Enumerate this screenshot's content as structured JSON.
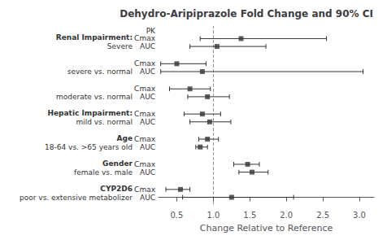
{
  "chart_data": {
    "type": "forest",
    "title": "Dehydro-Aripiprazole Fold Change and 90% CI",
    "xlabel": "Change Relative to Reference",
    "xlim": [
      0.25,
      3.2
    ],
    "xticks": [
      0.5,
      {
        "value": 1.0,
        "label": "1.0"
      },
      1.5,
      {
        "value": 2.0,
        "label": "2.0"
      },
      2.5,
      {
        "value": 3.0,
        "label": "3.0"
      }
    ],
    "reference_line": 1.0,
    "pk_header": "PK",
    "grid": false,
    "color": "#333333",
    "groups": [
      {
        "label": "CYP2D6",
        "sublabel": "poor vs. extensive metabolizer",
        "rows": [
          {
            "pk": "AUC",
            "est": 1.25,
            "lo": 0.58,
            "hi": 2.1
          },
          {
            "pk": "Cmax",
            "est": 0.55,
            "lo": 0.35,
            "hi": 0.68
          }
        ]
      },
      {
        "label": "Gender",
        "sublabel": "female vs. male",
        "rows": [
          {
            "pk": "AUC",
            "est": 1.53,
            "lo": 1.35,
            "hi": 1.75
          },
          {
            "pk": "Cmax",
            "est": 1.47,
            "lo": 1.28,
            "hi": 1.63
          }
        ]
      },
      {
        "label": "Age",
        "sublabel": "18-64 vs. >65 years old",
        "rows": [
          {
            "pk": "AUC",
            "est": 0.82,
            "lo": 0.76,
            "hi": 0.92
          },
          {
            "pk": "Cmax",
            "est": 0.92,
            "lo": 0.8,
            "hi": 1.07
          }
        ]
      },
      {
        "label": "Hepatic Impairment:",
        "sublabel": "mild vs. normal",
        "rows": [
          {
            "pk": "AUC",
            "est": 0.95,
            "lo": 0.68,
            "hi": 1.24
          },
          {
            "pk": "Cmax",
            "est": 0.85,
            "lo": 0.6,
            "hi": 1.1
          }
        ]
      },
      {
        "sublabel": "moderate vs. normal",
        "rows": [
          {
            "pk": "AUC",
            "est": 0.92,
            "lo": 0.65,
            "hi": 1.22
          },
          {
            "pk": "Cmax",
            "est": 0.68,
            "lo": 0.4,
            "hi": 0.96
          }
        ]
      },
      {
        "sublabel": "severe vs. normal",
        "rows": [
          {
            "pk": "AUC",
            "est": 0.85,
            "lo": 0.28,
            "hi": 3.05
          },
          {
            "pk": "Cmax",
            "est": 0.5,
            "lo": 0.28,
            "hi": 0.9
          }
        ]
      },
      {
        "label": "Renal Impairment:",
        "sublabel": "Severe",
        "rows": [
          {
            "pk": "AUC",
            "est": 1.05,
            "lo": 0.68,
            "hi": 1.72
          },
          {
            "pk": "Cmax",
            "est": 1.38,
            "lo": 0.82,
            "hi": 2.55
          }
        ]
      }
    ]
  }
}
